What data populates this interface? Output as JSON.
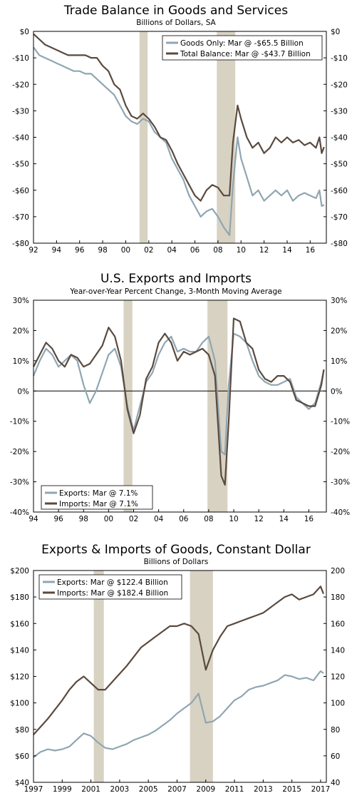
{
  "colors": {
    "goods": "#8fa6b2",
    "total": "#5a4a3f",
    "recession": "#d8d2c3",
    "frame": "#000000"
  },
  "chart_data": [
    {
      "type": "line",
      "title": "Trade Balance in Goods and Services",
      "subtitle": "Billions of Dollars, SA",
      "xlim": [
        1992,
        2017.4
      ],
      "ylim": [
        -80,
        0
      ],
      "x_ticks": [
        1992,
        1994,
        1996,
        1998,
        2000,
        2002,
        2004,
        2006,
        2008,
        2010,
        2012,
        2014,
        2016
      ],
      "x_tick_labels": [
        "92",
        "94",
        "96",
        "98",
        "00",
        "02",
        "04",
        "06",
        "08",
        "10",
        "12",
        "14",
        "16"
      ],
      "y_ticks": [
        0,
        -10,
        -20,
        -30,
        -40,
        -50,
        -60,
        -70,
        -80
      ],
      "y_tick_labels": [
        "$0",
        "-$10",
        "-$20",
        "-$30",
        "-$40",
        "-$50",
        "-$60",
        "-$70",
        "-$80"
      ],
      "legend_position": "top-right",
      "recessions": [
        [
          2001.2,
          2001.9
        ],
        [
          2007.9,
          2009.5
        ]
      ],
      "series": [
        {
          "name": "Goods Only: Mar @ -$65.5 Billion",
          "color": "#8fa6b2",
          "x": [
            1992,
            1992.5,
            1993,
            1993.5,
            1994,
            1994.5,
            1995,
            1995.5,
            1996,
            1996.5,
            1997,
            1997.5,
            1998,
            1998.5,
            1999,
            1999.5,
            2000,
            2000.5,
            2001,
            2001.5,
            2002,
            2002.5,
            2003,
            2003.5,
            2004,
            2004.5,
            2005,
            2005.5,
            2006,
            2006.5,
            2007,
            2007.5,
            2008,
            2008.5,
            2009,
            2009.3,
            2009.7,
            2010,
            2010.5,
            2011,
            2011.5,
            2012,
            2012.5,
            2013,
            2013.5,
            2014,
            2014.5,
            2015,
            2015.5,
            2016,
            2016.5,
            2016.8,
            2017,
            2017.2
          ],
          "y": [
            -6,
            -9,
            -10,
            -11,
            -12,
            -13,
            -14,
            -15,
            -15,
            -16,
            -16,
            -18,
            -20,
            -22,
            -24,
            -28,
            -32,
            -34,
            -35,
            -33,
            -34,
            -38,
            -40,
            -42,
            -48,
            -52,
            -56,
            -62,
            -66,
            -70,
            -68,
            -67,
            -70,
            -74,
            -77,
            -58,
            -40,
            -48,
            -55,
            -62,
            -60,
            -64,
            -62,
            -60,
            -62,
            -60,
            -64,
            -62,
            -61,
            -62,
            -63,
            -60,
            -66,
            -65.5
          ]
        },
        {
          "name": "Total Balance: Mar @ -$43.7 Billion",
          "color": "#5a4a3f",
          "x": [
            1992,
            1992.5,
            1993,
            1993.5,
            1994,
            1994.5,
            1995,
            1995.5,
            1996,
            1996.5,
            1997,
            1997.5,
            1998,
            1998.5,
            1999,
            1999.5,
            2000,
            2000.5,
            2001,
            2001.5,
            2002,
            2002.5,
            2003,
            2003.5,
            2004,
            2004.5,
            2005,
            2005.5,
            2006,
            2006.5,
            2007,
            2007.5,
            2008,
            2008.5,
            2009,
            2009.3,
            2009.7,
            2010,
            2010.5,
            2011,
            2011.5,
            2012,
            2012.5,
            2013,
            2013.5,
            2014,
            2014.5,
            2015,
            2015.5,
            2016,
            2016.5,
            2016.8,
            2017,
            2017.2
          ],
          "y": [
            -1,
            -3,
            -5,
            -6,
            -7,
            -8,
            -9,
            -9,
            -9,
            -9,
            -10,
            -10,
            -13,
            -15,
            -20,
            -22,
            -28,
            -32,
            -33,
            -31,
            -33,
            -36,
            -40,
            -41,
            -45,
            -50,
            -54,
            -58,
            -62,
            -64,
            -60,
            -58,
            -59,
            -62,
            -62,
            -42,
            -28,
            -33,
            -40,
            -44,
            -42,
            -46,
            -44,
            -40,
            -42,
            -40,
            -42,
            -41,
            -43,
            -42,
            -44,
            -40,
            -46,
            -43.7
          ]
        }
      ]
    },
    {
      "type": "line",
      "title": "U.S. Exports and Imports",
      "subtitle": "Year-over-Year Percent Change, 3-Month Moving Average",
      "xlim": [
        1994,
        2017.4
      ],
      "ylim": [
        -40,
        30
      ],
      "x_ticks": [
        1994,
        1996,
        1998,
        2000,
        2002,
        2004,
        2006,
        2008,
        2010,
        2012,
        2014,
        2016
      ],
      "x_tick_labels": [
        "94",
        "96",
        "98",
        "00",
        "02",
        "04",
        "06",
        "08",
        "10",
        "12",
        "14",
        "16"
      ],
      "y_ticks": [
        30,
        20,
        10,
        0,
        -10,
        -20,
        -30,
        -40
      ],
      "y_tick_labels": [
        "30%",
        "20%",
        "10%",
        "0%",
        "-10%",
        "-20%",
        "-30%",
        "-40%"
      ],
      "zero_line": true,
      "legend_position": "bottom-left",
      "recessions": [
        [
          2001.2,
          2001.9
        ],
        [
          2007.9,
          2009.5
        ]
      ],
      "series": [
        {
          "name": "Exports: Mar @ 7.1%",
          "color": "#8fa6b2",
          "x": [
            1994,
            1994.5,
            1995,
            1995.5,
            1996,
            1996.5,
            1997,
            1997.5,
            1998,
            1998.5,
            1999,
            1999.5,
            2000,
            2000.5,
            2001,
            2001.5,
            2002,
            2002.5,
            2003,
            2003.5,
            2004,
            2004.5,
            2005,
            2005.5,
            2006,
            2006.5,
            2007,
            2007.5,
            2008,
            2008.5,
            2009,
            2009.3,
            2009.6,
            2010,
            2010.5,
            2011,
            2011.5,
            2012,
            2012.5,
            2013,
            2013.5,
            2014,
            2014.5,
            2015,
            2015.5,
            2016,
            2016.5,
            2017,
            2017.2
          ],
          "y": [
            5,
            10,
            14,
            12,
            8,
            10,
            12,
            10,
            2,
            -4,
            0,
            6,
            12,
            14,
            8,
            -5,
            -13,
            -5,
            3,
            6,
            12,
            16,
            18,
            13,
            14,
            13,
            13,
            16,
            18,
            10,
            -20,
            -21,
            2,
            19,
            18,
            16,
            10,
            5,
            3,
            2,
            2,
            3,
            4,
            -2,
            -4,
            -6,
            -4,
            3,
            7.1
          ]
        },
        {
          "name": "Imports: Mar @ 7.1%",
          "color": "#5a4a3f",
          "x": [
            1994,
            1994.5,
            1995,
            1995.5,
            1996,
            1996.5,
            1997,
            1997.5,
            1998,
            1998.5,
            1999,
            1999.5,
            2000,
            2000.5,
            2001,
            2001.5,
            2002,
            2002.5,
            2003,
            2003.5,
            2004,
            2004.5,
            2005,
            2005.5,
            2006,
            2006.5,
            2007,
            2007.5,
            2008,
            2008.5,
            2009,
            2009.3,
            2009.6,
            2010,
            2010.5,
            2011,
            2011.5,
            2012,
            2012.5,
            2013,
            2013.5,
            2014,
            2014.5,
            2015,
            2015.5,
            2016,
            2016.5,
            2017,
            2017.2
          ],
          "y": [
            8,
            12,
            16,
            14,
            10,
            8,
            12,
            11,
            8,
            9,
            12,
            15,
            21,
            18,
            10,
            -6,
            -14,
            -8,
            4,
            8,
            16,
            19,
            16,
            10,
            13,
            12,
            13,
            14,
            12,
            5,
            -28,
            -31,
            -10,
            24,
            23,
            16,
            14,
            7,
            4,
            3,
            5,
            5,
            3,
            -3,
            -4,
            -5,
            -5,
            2,
            7.1
          ]
        }
      ]
    },
    {
      "type": "line",
      "title": "Exports & Imports of Goods, Constant Dollar",
      "subtitle": "Billions of Dollars",
      "xlim": [
        1997,
        2017.4
      ],
      "ylim": [
        40,
        200
      ],
      "x_ticks": [
        1997,
        1999,
        2001,
        2003,
        2005,
        2007,
        2009,
        2011,
        2013,
        2015,
        2017
      ],
      "x_tick_labels": [
        "1997",
        "1999",
        "2001",
        "2003",
        "2005",
        "2007",
        "2009",
        "2011",
        "2013",
        "2015",
        "2017"
      ],
      "y_ticks": [
        200,
        180,
        160,
        140,
        120,
        100,
        80,
        60,
        40
      ],
      "y_tick_labels": [
        "$200",
        "$180",
        "$160",
        "$140",
        "$120",
        "$100",
        "$80",
        "$60",
        "$40"
      ],
      "y_tick_labels_right": [
        "200",
        "180",
        "160",
        "140",
        "120",
        "100",
        "80",
        "60",
        "40"
      ],
      "legend_position": "top-left",
      "recessions": [
        [
          2001.2,
          2001.9
        ],
        [
          2007.9,
          2009.5
        ]
      ],
      "series": [
        {
          "name": "Exports: Mar @ $122.4 Billion",
          "color": "#8fa6b2",
          "x": [
            1997,
            1997.5,
            1998,
            1998.5,
            1999,
            1999.5,
            2000,
            2000.5,
            2001,
            2001.5,
            2002,
            2002.5,
            2003,
            2003.5,
            2004,
            2004.5,
            2005,
            2005.5,
            2006,
            2006.5,
            2007,
            2007.5,
            2008,
            2008.5,
            2009,
            2009.5,
            2010,
            2010.5,
            2011,
            2011.5,
            2012,
            2012.5,
            2013,
            2013.5,
            2014,
            2014.5,
            2015,
            2015.5,
            2016,
            2016.5,
            2017,
            2017.2
          ],
          "y": [
            59,
            63,
            65,
            64,
            65,
            67,
            72,
            77,
            75,
            70,
            66,
            65,
            67,
            69,
            72,
            74,
            76,
            79,
            83,
            87,
            92,
            96,
            100,
            107,
            85,
            86,
            90,
            96,
            102,
            105,
            110,
            112,
            113,
            115,
            117,
            121,
            120,
            118,
            119,
            117,
            124,
            122.4
          ]
        },
        {
          "name": "Imports: Mar @ $182.4 Billion",
          "color": "#5a4a3f",
          "x": [
            1997,
            1997.5,
            1998,
            1998.5,
            1999,
            1999.5,
            2000,
            2000.5,
            2001,
            2001.5,
            2002,
            2002.5,
            2003,
            2003.5,
            2004,
            2004.5,
            2005,
            2005.5,
            2006,
            2006.5,
            2007,
            2007.5,
            2008,
            2008.5,
            2009,
            2009.5,
            2010,
            2010.5,
            2011,
            2011.5,
            2012,
            2012.5,
            2013,
            2013.5,
            2014,
            2014.5,
            2015,
            2015.5,
            2016,
            2016.5,
            2017,
            2017.2
          ],
          "y": [
            76,
            82,
            88,
            95,
            102,
            110,
            116,
            120,
            115,
            110,
            110,
            116,
            122,
            128,
            135,
            142,
            146,
            150,
            154,
            158,
            158,
            160,
            158,
            152,
            125,
            140,
            150,
            158,
            160,
            162,
            164,
            166,
            168,
            172,
            176,
            180,
            182,
            178,
            180,
            182,
            188,
            182.4
          ]
        }
      ]
    }
  ]
}
